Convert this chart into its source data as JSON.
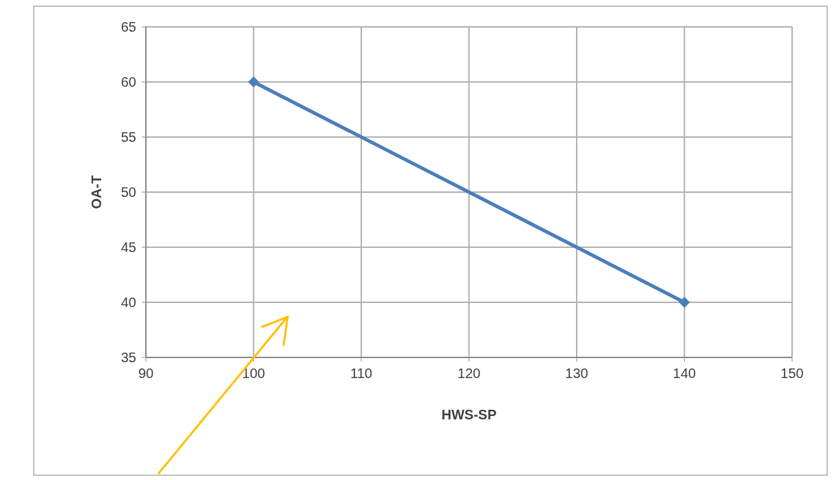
{
  "chart_data": {
    "type": "line",
    "xlabel": "HWS-SP",
    "ylabel": "OA-T",
    "x": [
      100,
      140
    ],
    "series": [
      {
        "color": "#4a7ebb",
        "values": [
          60,
          40
        ]
      }
    ],
    "xlim": [
      90,
      150
    ],
    "xticks": [
      90,
      100,
      110,
      120,
      130,
      140,
      150
    ],
    "ylim": [
      35,
      65
    ],
    "yticks": [
      35,
      40,
      45,
      50,
      55,
      60,
      65
    ],
    "grid": true,
    "legend": false,
    "marker": "diamond",
    "line_style": "solid"
  }
}
